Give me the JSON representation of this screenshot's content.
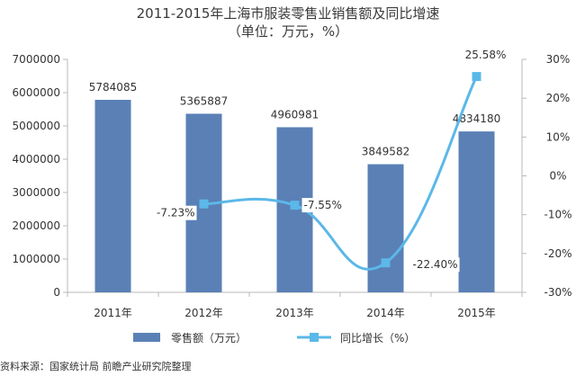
{
  "title_line1": "2011-2015年上海市服装零售业销售额及同比增速",
  "title_line2": "（单位：万元，%）",
  "source": "资料来源：国家统计局 前瞻产业研究院整理",
  "colors": {
    "bar": "#5a80b6",
    "line": "#5bb8e8",
    "axis": "#b8b8b8"
  },
  "chart_data": {
    "type": "bar",
    "categories": [
      "2011年",
      "2012年",
      "2013年",
      "2014年",
      "2015年"
    ],
    "series": [
      {
        "name": "零售额（万元）",
        "type": "bar",
        "axis": "left",
        "values": [
          5784085,
          5365887,
          4960981,
          3849582,
          4834180
        ],
        "labels": [
          "5784085",
          "5365887",
          "4960981",
          "3849582",
          "4834180"
        ]
      },
      {
        "name": "同比增长（%）",
        "type": "line",
        "axis": "right",
        "values": [
          null,
          -7.23,
          -7.55,
          -22.4,
          25.58
        ],
        "labels": [
          "",
          "-7.23%",
          "-7.55%",
          "-22.40%",
          "25.58%"
        ]
      }
    ],
    "y_left": {
      "lim": [
        0,
        7000000
      ],
      "ticks": [
        "0",
        "1000000",
        "2000000",
        "3000000",
        "4000000",
        "5000000",
        "6000000",
        "7000000"
      ]
    },
    "y_right": {
      "lim": [
        -30,
        30
      ],
      "ticks": [
        "-30%",
        "-20%",
        "-10%",
        "0%",
        "10%",
        "20%",
        "30%"
      ]
    },
    "legend_position": "bottom",
    "grid": false
  }
}
